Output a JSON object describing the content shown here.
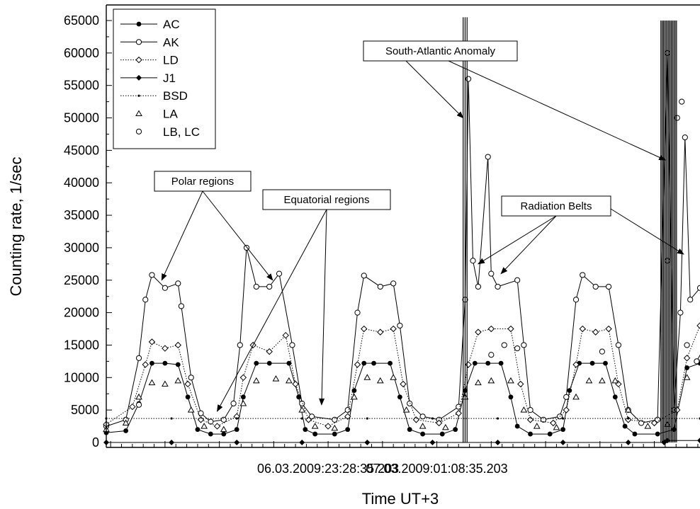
{
  "chart_data": {
    "type": "line",
    "xlabel": "Time UT+3",
    "ylabel": "Counting rate, 1/sec",
    "ylim": [
      0,
      65000
    ],
    "ytick_step": 5000,
    "x_unit": "hours from first sample",
    "xlim": [
      0,
      9.1
    ],
    "xtick_labels": [
      {
        "x": 3.4,
        "label": "06.03.2009:23:28:35.203"
      },
      {
        "x": 5.0667,
        "label": "07.03.2009:01:08:35.203"
      }
    ],
    "grid": false,
    "legend_position": "top-left",
    "series": [
      {
        "name": "AC",
        "marker": "filled-circle",
        "line": "solid",
        "color": "#000000",
        "values": [
          [
            0,
            1500
          ],
          [
            0.3,
            1800
          ],
          [
            0.5,
            6000
          ],
          [
            0.7,
            12200
          ],
          [
            0.9,
            12200
          ],
          [
            1.1,
            12000
          ],
          [
            1.25,
            7000
          ],
          [
            1.4,
            2000
          ],
          [
            1.6,
            1300
          ],
          [
            1.8,
            1300
          ],
          [
            2,
            2000
          ],
          [
            2.1,
            7000
          ],
          [
            2.3,
            12200
          ],
          [
            2.5,
            12200
          ],
          [
            2.8,
            12200
          ],
          [
            2.95,
            7000
          ],
          [
            3.05,
            2000
          ],
          [
            3.2,
            1300
          ],
          [
            3.5,
            1300
          ],
          [
            3.7,
            2000
          ],
          [
            3.8,
            8000
          ],
          [
            3.95,
            12200
          ],
          [
            4.1,
            12200
          ],
          [
            4.35,
            12200
          ],
          [
            4.5,
            7000
          ],
          [
            4.65,
            2000
          ],
          [
            4.85,
            1300
          ],
          [
            5.15,
            1300
          ],
          [
            5.35,
            2000
          ],
          [
            5.5,
            8000
          ],
          [
            5.65,
            12200
          ],
          [
            5.85,
            12200
          ],
          [
            6.05,
            12200
          ],
          [
            6.2,
            7000
          ],
          [
            6.3,
            2500
          ],
          [
            6.5,
            1300
          ],
          [
            6.8,
            1300
          ],
          [
            7,
            2000
          ],
          [
            7.1,
            8000
          ],
          [
            7.25,
            12200
          ],
          [
            7.45,
            12200
          ],
          [
            7.65,
            12200
          ],
          [
            7.8,
            7000
          ],
          [
            7.95,
            2500
          ],
          [
            8.1,
            1300
          ],
          [
            8.45,
            1300
          ],
          [
            8.7,
            2000
          ],
          [
            8.9,
            11500
          ],
          [
            9.1,
            12200
          ]
        ]
      },
      {
        "name": "AK",
        "marker": "open-circle",
        "line": "solid",
        "color": "#000000",
        "values": [
          [
            0,
            2500
          ],
          [
            0.3,
            3500
          ],
          [
            0.5,
            13000
          ],
          [
            0.6,
            22000
          ],
          [
            0.7,
            25800
          ],
          [
            0.9,
            23800
          ],
          [
            1.1,
            24500
          ],
          [
            1.15,
            21000
          ],
          [
            1.3,
            10000
          ],
          [
            1.45,
            4500
          ],
          [
            1.6,
            3200
          ],
          [
            1.8,
            3500
          ],
          [
            1.95,
            6000
          ],
          [
            2.05,
            15000
          ],
          [
            2.15,
            30000
          ],
          [
            2.3,
            24000
          ],
          [
            2.5,
            24000
          ],
          [
            2.65,
            26000
          ],
          [
            2.85,
            15000
          ],
          [
            3,
            6000
          ],
          [
            3.15,
            4000
          ],
          [
            3.5,
            3500
          ],
          [
            3.7,
            5000
          ],
          [
            3.85,
            20000
          ],
          [
            3.95,
            25700
          ],
          [
            4.2,
            24000
          ],
          [
            4.4,
            24500
          ],
          [
            4.5,
            18000
          ],
          [
            4.65,
            6000
          ],
          [
            4.85,
            4000
          ],
          [
            5.1,
            3500
          ],
          [
            5.4,
            5500
          ],
          [
            5.5,
            22000
          ],
          [
            5.55,
            56000
          ],
          [
            5.62,
            28000
          ],
          [
            5.7,
            24000
          ],
          [
            5.85,
            44000
          ],
          [
            5.9,
            26000
          ],
          [
            6,
            24000
          ],
          [
            6.3,
            25000
          ],
          [
            6.4,
            15000
          ],
          [
            6.5,
            5000
          ],
          [
            6.7,
            3500
          ],
          [
            6.95,
            4000
          ],
          [
            7.05,
            7000
          ],
          [
            7.2,
            22000
          ],
          [
            7.3,
            25800
          ],
          [
            7.5,
            24000
          ],
          [
            7.7,
            24000
          ],
          [
            7.85,
            15000
          ],
          [
            8,
            5000
          ],
          [
            8.2,
            3000
          ],
          [
            8.45,
            3500
          ],
          [
            8.6,
            60000
          ],
          [
            8.7,
            5000
          ],
          [
            8.8,
            20000
          ],
          [
            8.87,
            47000
          ],
          [
            8.95,
            22000
          ],
          [
            9.1,
            23800
          ]
        ]
      },
      {
        "name": "LD",
        "marker": "open-diamond",
        "line": "dotted",
        "color": "#000000",
        "values": [
          [
            0,
            2800
          ],
          [
            0.4,
            5500
          ],
          [
            0.6,
            12000
          ],
          [
            0.7,
            15500
          ],
          [
            0.9,
            14500
          ],
          [
            1.1,
            15000
          ],
          [
            1.25,
            9000
          ],
          [
            1.45,
            3500
          ],
          [
            1.7,
            2500
          ],
          [
            2,
            4000
          ],
          [
            2.1,
            10000
          ],
          [
            2.25,
            15000
          ],
          [
            2.5,
            14000
          ],
          [
            2.75,
            16500
          ],
          [
            2.9,
            9000
          ],
          [
            3.1,
            3500
          ],
          [
            3.4,
            2500
          ],
          [
            3.7,
            4000
          ],
          [
            3.85,
            12000
          ],
          [
            3.95,
            17500
          ],
          [
            4.2,
            17000
          ],
          [
            4.4,
            17500
          ],
          [
            4.55,
            9000
          ],
          [
            4.75,
            3500
          ],
          [
            5.1,
            3000
          ],
          [
            5.4,
            4500
          ],
          [
            5.55,
            12000
          ],
          [
            5.7,
            17000
          ],
          [
            5.9,
            17500
          ],
          [
            6.2,
            17500
          ],
          [
            6.35,
            9000
          ],
          [
            6.5,
            3500
          ],
          [
            6.85,
            3000
          ],
          [
            7.05,
            5000
          ],
          [
            7.2,
            12000
          ],
          [
            7.3,
            17500
          ],
          [
            7.5,
            17000
          ],
          [
            7.7,
            17500
          ],
          [
            7.85,
            9000
          ],
          [
            8,
            3500
          ],
          [
            8.4,
            3000
          ],
          [
            8.75,
            5000
          ],
          [
            8.9,
            13000
          ],
          [
            9.1,
            18000
          ]
        ]
      },
      {
        "name": "J1",
        "marker": "filled-diamond",
        "line": "solid",
        "color": "#000000",
        "values": [
          [
            0,
            0
          ],
          [
            1,
            0
          ],
          [
            2,
            0
          ],
          [
            3,
            0
          ],
          [
            4,
            0
          ],
          [
            5,
            0
          ],
          [
            6,
            0
          ],
          [
            7,
            0
          ],
          [
            8,
            0
          ],
          [
            8.55,
            0
          ],
          [
            8.6,
            300
          ],
          [
            9.1,
            300
          ]
        ]
      },
      {
        "name": "BSD",
        "marker": "small-dot",
        "line": "dotted",
        "color": "#000000",
        "values": [
          [
            0,
            3700
          ],
          [
            1,
            3700
          ],
          [
            2,
            3700
          ],
          [
            3,
            3700
          ],
          [
            4,
            3700
          ],
          [
            5,
            3700
          ],
          [
            6,
            3700
          ],
          [
            7,
            3700
          ],
          [
            8,
            3700
          ],
          [
            9.1,
            3700
          ]
        ]
      },
      {
        "name": "LA",
        "marker": "open-triangle",
        "line": "none",
        "color": "#000000",
        "values": [
          [
            0,
            2000
          ],
          [
            0.3,
            3000
          ],
          [
            0.5,
            7000
          ],
          [
            0.7,
            9200
          ],
          [
            0.9,
            9000
          ],
          [
            1.1,
            9500
          ],
          [
            1.3,
            5000
          ],
          [
            1.5,
            2500
          ],
          [
            1.8,
            2000
          ],
          [
            2.1,
            6000
          ],
          [
            2.3,
            9500
          ],
          [
            2.6,
            9800
          ],
          [
            2.8,
            9500
          ],
          [
            3,
            5000
          ],
          [
            3.2,
            2500
          ],
          [
            3.5,
            2200
          ],
          [
            3.8,
            7000
          ],
          [
            4,
            10000
          ],
          [
            4.2,
            9500
          ],
          [
            4.4,
            10000
          ],
          [
            4.6,
            5000
          ],
          [
            4.85,
            2500
          ],
          [
            5.2,
            2300
          ],
          [
            5.5,
            7000
          ],
          [
            5.7,
            9200
          ],
          [
            5.9,
            9500
          ],
          [
            6.2,
            9500
          ],
          [
            6.4,
            5000
          ],
          [
            6.6,
            2500
          ],
          [
            6.9,
            2300
          ],
          [
            7.2,
            7000
          ],
          [
            7.4,
            9500
          ],
          [
            7.6,
            9500
          ],
          [
            7.8,
            9500
          ],
          [
            8,
            5000
          ],
          [
            8.3,
            2500
          ],
          [
            8.6,
            2800
          ],
          [
            8.9,
            10000
          ],
          [
            9.1,
            13000
          ]
        ]
      },
      {
        "name": "LB, LC",
        "marker": "open-circle",
        "line": "none",
        "color": "#000000",
        "values": [
          [
            0.5,
            5800
          ],
          [
            5.9,
            13500
          ],
          [
            6.1,
            15000
          ],
          [
            6.3,
            14500
          ],
          [
            7.6,
            14000
          ],
          [
            8.6,
            28000
          ],
          [
            8.75,
            50000
          ],
          [
            8.82,
            52500
          ],
          [
            8.9,
            15000
          ],
          [
            9.05,
            12500
          ]
        ]
      }
    ],
    "spikes": [
      {
        "series": "South-Atlantic Anomaly",
        "x": [
          5.47,
          5.5,
          5.53
        ],
        "max": 65500
      },
      {
        "series": "South-Atlantic Anomaly",
        "x": [
          8.5,
          8.52,
          8.54,
          8.56,
          8.58,
          8.6,
          8.62,
          8.64,
          8.66,
          8.68,
          8.7,
          8.72,
          8.74
        ],
        "max": 65000
      }
    ],
    "annotations": [
      {
        "text": "Polar regions",
        "targets": [
          [
            0.85,
            25000
          ],
          [
            2.55,
            25000
          ]
        ]
      },
      {
        "text": "Equatorial regions",
        "targets": [
          [
            1.7,
            4800
          ],
          [
            3.3,
            5800
          ]
        ]
      },
      {
        "text": "South-Atlantic Anomaly",
        "targets": [
          [
            5.47,
            50000
          ],
          [
            8.57,
            43500
          ]
        ]
      },
      {
        "text": "Radiation Belts",
        "targets": [
          [
            5.7,
            27500
          ],
          [
            6.05,
            26000
          ],
          [
            8.85,
            29000
          ]
        ]
      }
    ]
  }
}
